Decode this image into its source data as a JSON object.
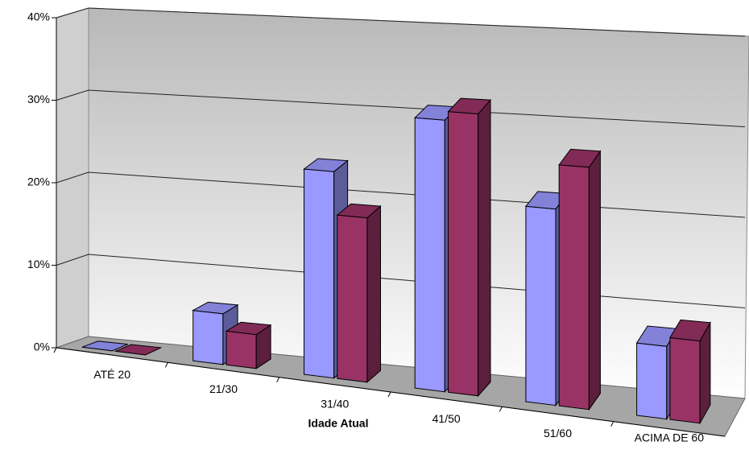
{
  "chart_data": {
    "type": "bar3d",
    "x_label": "Idade Atual",
    "categories": [
      "ATÉ 20",
      "21/30",
      "31/40",
      "41/50",
      "51/60",
      "ACIMA DE 60"
    ],
    "series": [
      {
        "color": "#9999ff",
        "values": [
          0,
          6,
          24,
          31,
          22,
          8
        ]
      },
      {
        "color": "#993366",
        "values": [
          0,
          4,
          19,
          32,
          27,
          9
        ]
      }
    ],
    "ylim": [
      0,
      40
    ],
    "yticks": [
      {
        "value": 0,
        "label": "0%"
      },
      {
        "value": 10,
        "label": "10%"
      },
      {
        "value": 20,
        "label": "20%"
      },
      {
        "value": 30,
        "label": "30%"
      },
      {
        "value": 40,
        "label": "40%"
      }
    ],
    "grid": true
  }
}
